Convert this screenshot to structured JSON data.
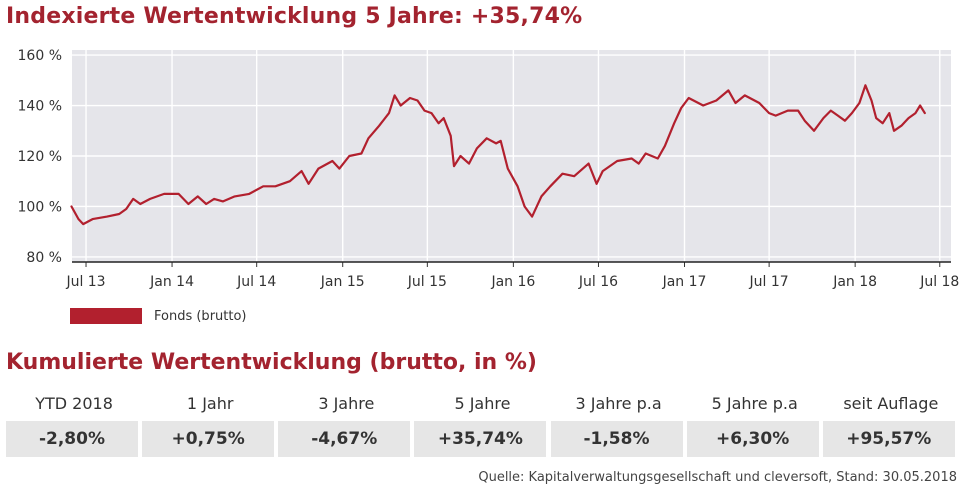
{
  "title": "Indexierte Wertentwicklung 5 Jahre: +35,74%",
  "legend": {
    "label": "Fonds (brutto)",
    "color": "#b2202e"
  },
  "subtitle": "Kumulierte Wertentwicklung (brutto, in %)",
  "table": {
    "headers": [
      "YTD 2018",
      "1 Jahr",
      "3 Jahre",
      "5 Jahre",
      "3 Jahre p.a",
      "5 Jahre p.a",
      "seit Auflage"
    ],
    "values": [
      "-2,80%",
      "+0,75%",
      "-4,67%",
      "+35,74%",
      "-1,58%",
      "+6,30%",
      "+95,57%"
    ]
  },
  "source": "Quelle: Kapitalverwaltungsgesellschaft und cleversoft, Stand: 30.05.2018",
  "chart_data": {
    "type": "line",
    "title": "Indexierte Wertentwicklung 5 Jahre: +35,74%",
    "xlabel": "",
    "ylabel": "",
    "x_tick_labels": [
      "Jul 13",
      "Jan 14",
      "Jul 14",
      "Jan 15",
      "Jul 15",
      "Jan 16",
      "Jul 16",
      "Jan 17",
      "Jul 17",
      "Jan 18",
      "Jul 18"
    ],
    "y_tick_labels": [
      "80 %",
      "100 %",
      "120 %",
      "140 %",
      "160 %"
    ],
    "y_ticks": [
      80,
      100,
      120,
      140,
      160
    ],
    "ylim": [
      78,
      162
    ],
    "xlim": [
      "2013-06-01",
      "2018-07-25"
    ],
    "grid": true,
    "background": "#e5e5ea",
    "series": [
      {
        "name": "Fonds (brutto)",
        "color": "#b2202e",
        "points": [
          [
            "2013-05-31",
            100
          ],
          [
            "2013-06-15",
            95
          ],
          [
            "2013-06-25",
            93
          ],
          [
            "2013-07-15",
            95
          ],
          [
            "2013-08-15",
            96
          ],
          [
            "2013-09-10",
            97
          ],
          [
            "2013-09-25",
            99
          ],
          [
            "2013-10-10",
            103
          ],
          [
            "2013-10-25",
            101
          ],
          [
            "2013-11-15",
            103
          ],
          [
            "2013-12-15",
            105
          ],
          [
            "2014-01-15",
            105
          ],
          [
            "2014-02-05",
            101
          ],
          [
            "2014-02-25",
            104
          ],
          [
            "2014-03-15",
            101
          ],
          [
            "2014-04-01",
            103
          ],
          [
            "2014-04-20",
            102
          ],
          [
            "2014-05-15",
            104
          ],
          [
            "2014-06-15",
            105
          ],
          [
            "2014-07-15",
            108
          ],
          [
            "2014-08-10",
            108
          ],
          [
            "2014-09-10",
            110
          ],
          [
            "2014-10-05",
            114
          ],
          [
            "2014-10-20",
            109
          ],
          [
            "2014-11-10",
            115
          ],
          [
            "2014-12-10",
            118
          ],
          [
            "2014-12-25",
            115
          ],
          [
            "2015-01-15",
            120
          ],
          [
            "2015-02-10",
            121
          ],
          [
            "2015-02-25",
            127
          ],
          [
            "2015-03-20",
            132
          ],
          [
            "2015-04-10",
            137
          ],
          [
            "2015-04-22",
            144
          ],
          [
            "2015-05-05",
            140
          ],
          [
            "2015-05-25",
            143
          ],
          [
            "2015-06-10",
            142
          ],
          [
            "2015-06-25",
            138
          ],
          [
            "2015-07-10",
            137
          ],
          [
            "2015-07-25",
            133
          ],
          [
            "2015-08-05",
            135
          ],
          [
            "2015-08-20",
            128
          ],
          [
            "2015-08-27",
            116
          ],
          [
            "2015-09-10",
            120
          ],
          [
            "2015-09-28",
            117
          ],
          [
            "2015-10-15",
            123
          ],
          [
            "2015-11-05",
            127
          ],
          [
            "2015-11-25",
            125
          ],
          [
            "2015-12-05",
            126
          ],
          [
            "2015-12-20",
            115
          ],
          [
            "2016-01-10",
            108
          ],
          [
            "2016-01-25",
            100
          ],
          [
            "2016-02-10",
            96
          ],
          [
            "2016-03-01",
            104
          ],
          [
            "2016-03-20",
            108
          ],
          [
            "2016-04-15",
            113
          ],
          [
            "2016-05-10",
            112
          ],
          [
            "2016-06-10",
            117
          ],
          [
            "2016-06-27",
            109
          ],
          [
            "2016-07-10",
            114
          ],
          [
            "2016-08-10",
            118
          ],
          [
            "2016-09-10",
            119
          ],
          [
            "2016-09-25",
            117
          ],
          [
            "2016-10-10",
            121
          ],
          [
            "2016-11-05",
            119
          ],
          [
            "2016-11-20",
            124
          ],
          [
            "2016-12-10",
            133
          ],
          [
            "2016-12-25",
            139
          ],
          [
            "2017-01-10",
            143
          ],
          [
            "2017-02-10",
            140
          ],
          [
            "2017-03-10",
            142
          ],
          [
            "2017-04-05",
            146
          ],
          [
            "2017-04-20",
            141
          ],
          [
            "2017-05-10",
            144
          ],
          [
            "2017-06-10",
            141
          ],
          [
            "2017-07-01",
            137
          ],
          [
            "2017-07-15",
            136
          ],
          [
            "2017-08-10",
            138
          ],
          [
            "2017-09-01",
            138
          ],
          [
            "2017-09-15",
            134
          ],
          [
            "2017-10-05",
            130
          ],
          [
            "2017-10-25",
            135
          ],
          [
            "2017-11-10",
            138
          ],
          [
            "2017-11-25",
            136
          ],
          [
            "2017-12-10",
            134
          ],
          [
            "2017-12-25",
            137
          ],
          [
            "2018-01-10",
            141
          ],
          [
            "2018-01-23",
            148
          ],
          [
            "2018-02-05",
            142
          ],
          [
            "2018-02-15",
            135
          ],
          [
            "2018-03-01",
            133
          ],
          [
            "2018-03-15",
            137
          ],
          [
            "2018-03-25",
            130
          ],
          [
            "2018-04-10",
            132
          ],
          [
            "2018-04-25",
            135
          ],
          [
            "2018-05-10",
            137
          ],
          [
            "2018-05-20",
            140
          ],
          [
            "2018-05-30",
            137
          ]
        ]
      }
    ]
  }
}
